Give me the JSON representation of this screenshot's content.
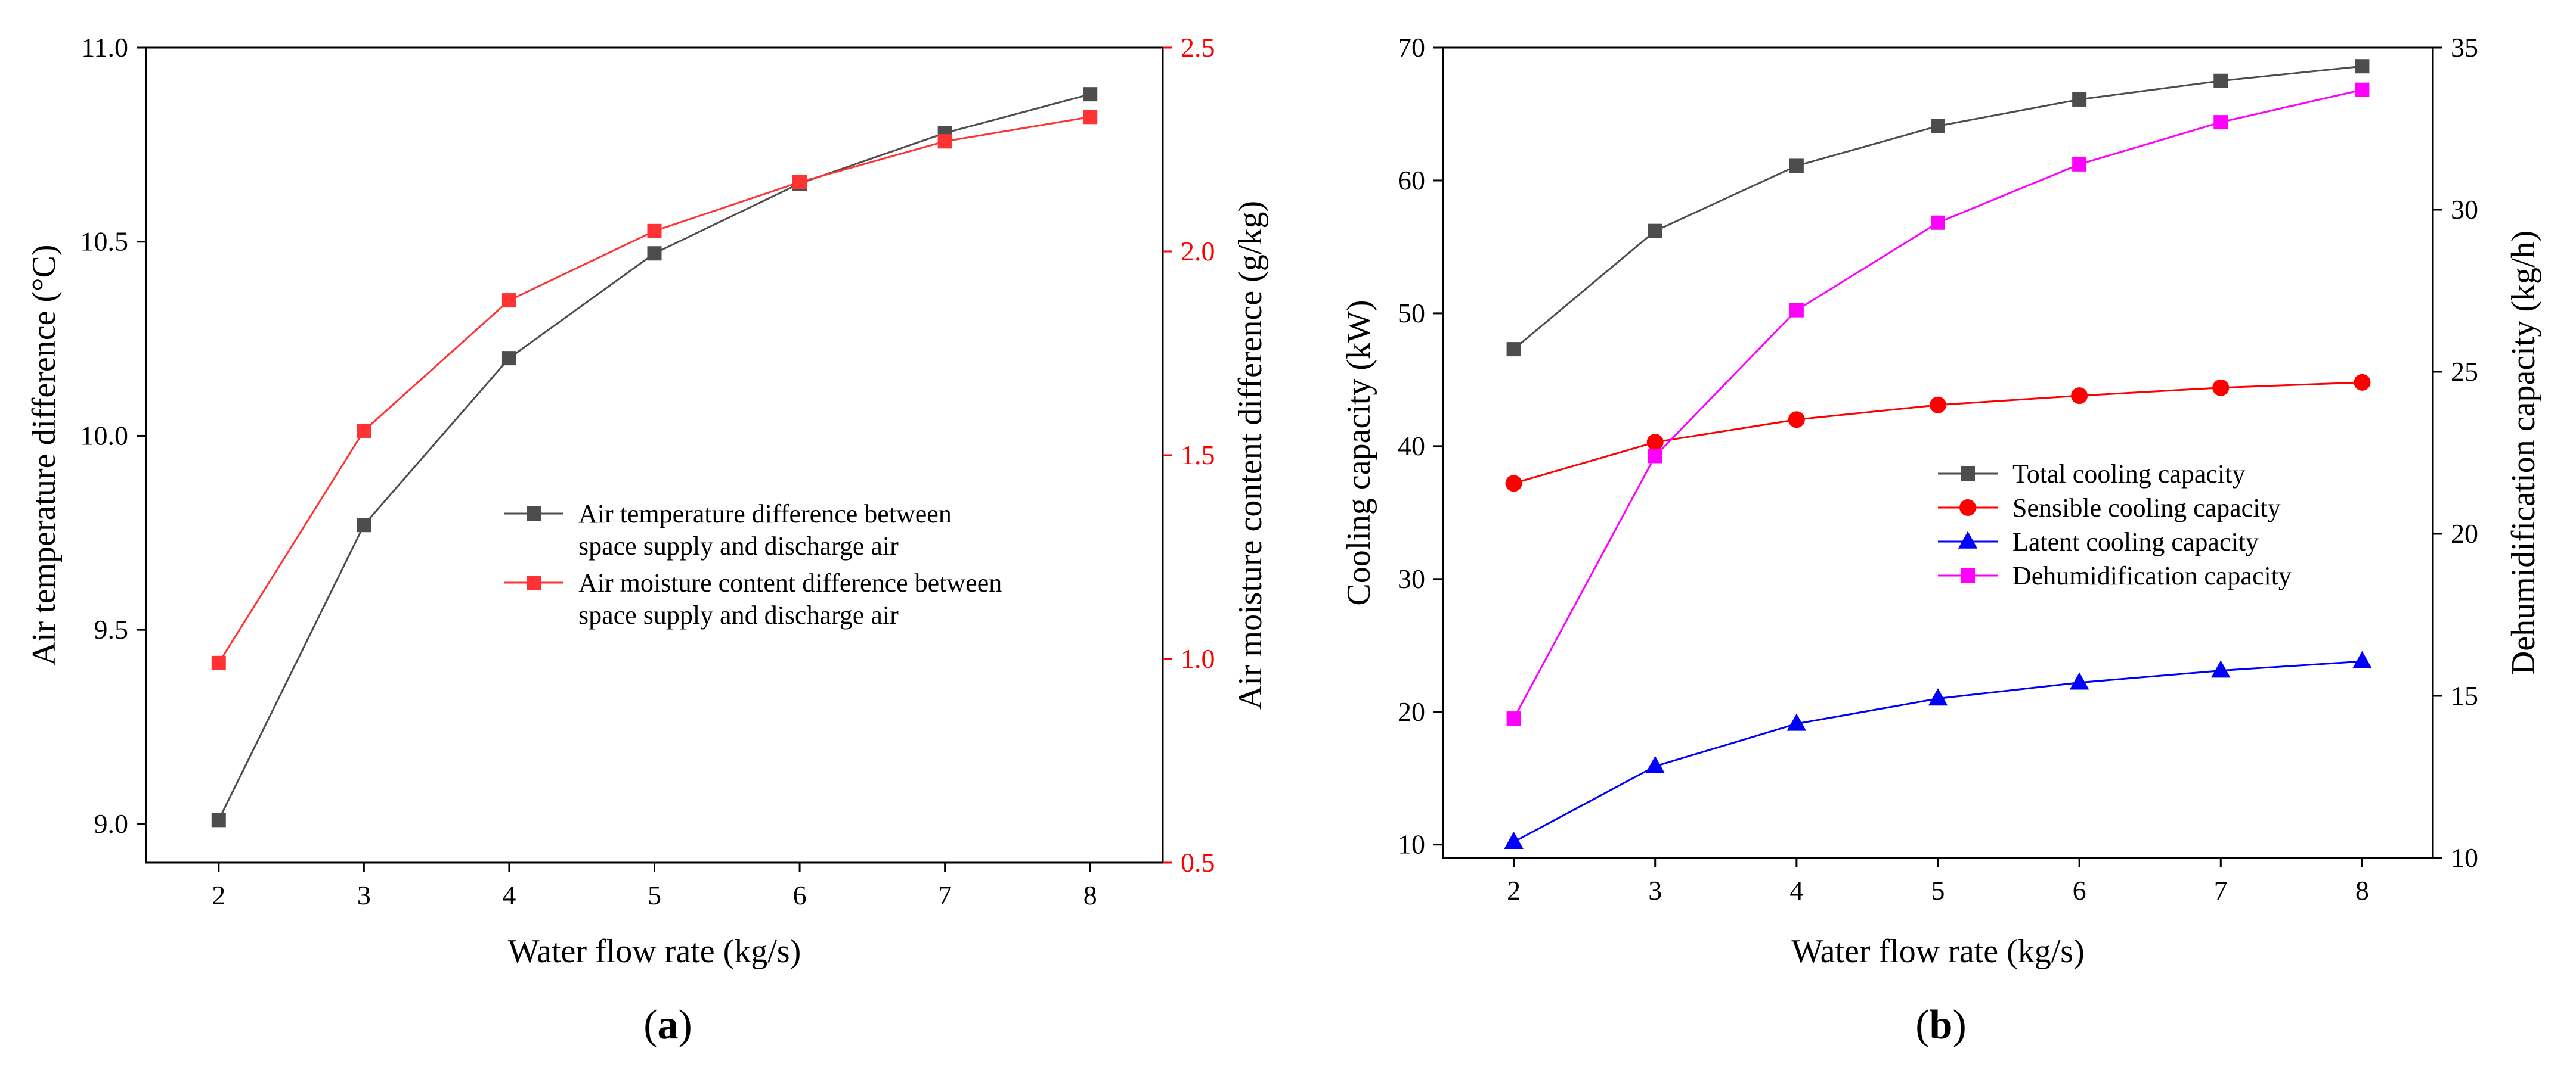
{
  "chart_data": [
    {
      "type": "line",
      "panel_label": "(a)",
      "panel_letter": "a",
      "xlabel": "Water flow rate (kg/s)",
      "x": [
        2,
        3,
        4,
        5,
        6,
        7,
        8
      ],
      "xlim": [
        1.5,
        8.5
      ],
      "xticks": [
        "2",
        "3",
        "4",
        "5",
        "6",
        "7",
        "8"
      ],
      "ylabel_left": "Air temperature difference (°C)",
      "ylim_left": [
        8.9,
        11.0
      ],
      "yticks_left": [
        "9.0",
        "9.5",
        "10.0",
        "10.5",
        "11.0"
      ],
      "ylabel_right": "Air moisture content difference (g/kg)",
      "ylim_right": [
        0.5,
        2.5
      ],
      "yticks_right": [
        "0.5",
        "1.0",
        "1.5",
        "2.0",
        "2.5"
      ],
      "legend_location": "center-right",
      "series": [
        {
          "name_lines": [
            "Air temperature difference between",
            "space supply and discharge air"
          ],
          "axis": "left",
          "color": "#4d4d4d",
          "marker": "square",
          "values": [
            9.01,
            9.77,
            10.2,
            10.47,
            10.65,
            10.78,
            10.88
          ]
        },
        {
          "name_lines": [
            "Air moisture content difference between",
            "space supply and discharge air"
          ],
          "axis": "right",
          "color": "#ff3333",
          "marker": "square",
          "values": [
            0.99,
            1.56,
            1.88,
            2.05,
            2.17,
            2.27,
            2.33
          ]
        }
      ]
    },
    {
      "type": "line",
      "panel_label": "(b)",
      "panel_letter": "b",
      "xlabel": "Water flow rate (kg/s)",
      "x": [
        2,
        3,
        4,
        5,
        6,
        7,
        8
      ],
      "xlim": [
        1.5,
        8.5
      ],
      "xticks": [
        "2",
        "3",
        "4",
        "5",
        "6",
        "7",
        "8"
      ],
      "ylabel_left": "Cooling capacity (kW)",
      "ylim_left": [
        9,
        70
      ],
      "yticks_left": [
        "10",
        "20",
        "30",
        "40",
        "50",
        "60",
        "70"
      ],
      "ylabel_right": "Dehumidification capacity (kg/h)",
      "ylim_right": [
        10,
        35
      ],
      "yticks_right": [
        "10",
        "15",
        "20",
        "25",
        "30",
        "35"
      ],
      "legend_location": "center-right",
      "series": [
        {
          "name_lines": [
            "Total cooling capacity"
          ],
          "axis": "left",
          "color": "#4d4d4d",
          "marker": "square",
          "values": [
            47.3,
            56.2,
            61.1,
            64.1,
            66.1,
            67.5,
            68.6
          ]
        },
        {
          "name_lines": [
            "Sensible cooling capacity"
          ],
          "axis": "left",
          "color": "#ff0000",
          "marker": "circle",
          "values": [
            37.2,
            40.3,
            42.0,
            43.1,
            43.8,
            44.4,
            44.8
          ]
        },
        {
          "name_lines": [
            "Latent cooling capacity"
          ],
          "axis": "left",
          "color": "#0000ff",
          "marker": "triangle",
          "values": [
            10.2,
            15.9,
            19.1,
            21.0,
            22.2,
            23.1,
            23.8
          ]
        },
        {
          "name_lines": [
            "Dehumidification capacity"
          ],
          "axis": "right",
          "color": "#ff00ff",
          "marker": "square",
          "values": [
            14.3,
            22.4,
            26.9,
            29.6,
            31.4,
            32.7,
            33.7
          ]
        }
      ]
    }
  ]
}
